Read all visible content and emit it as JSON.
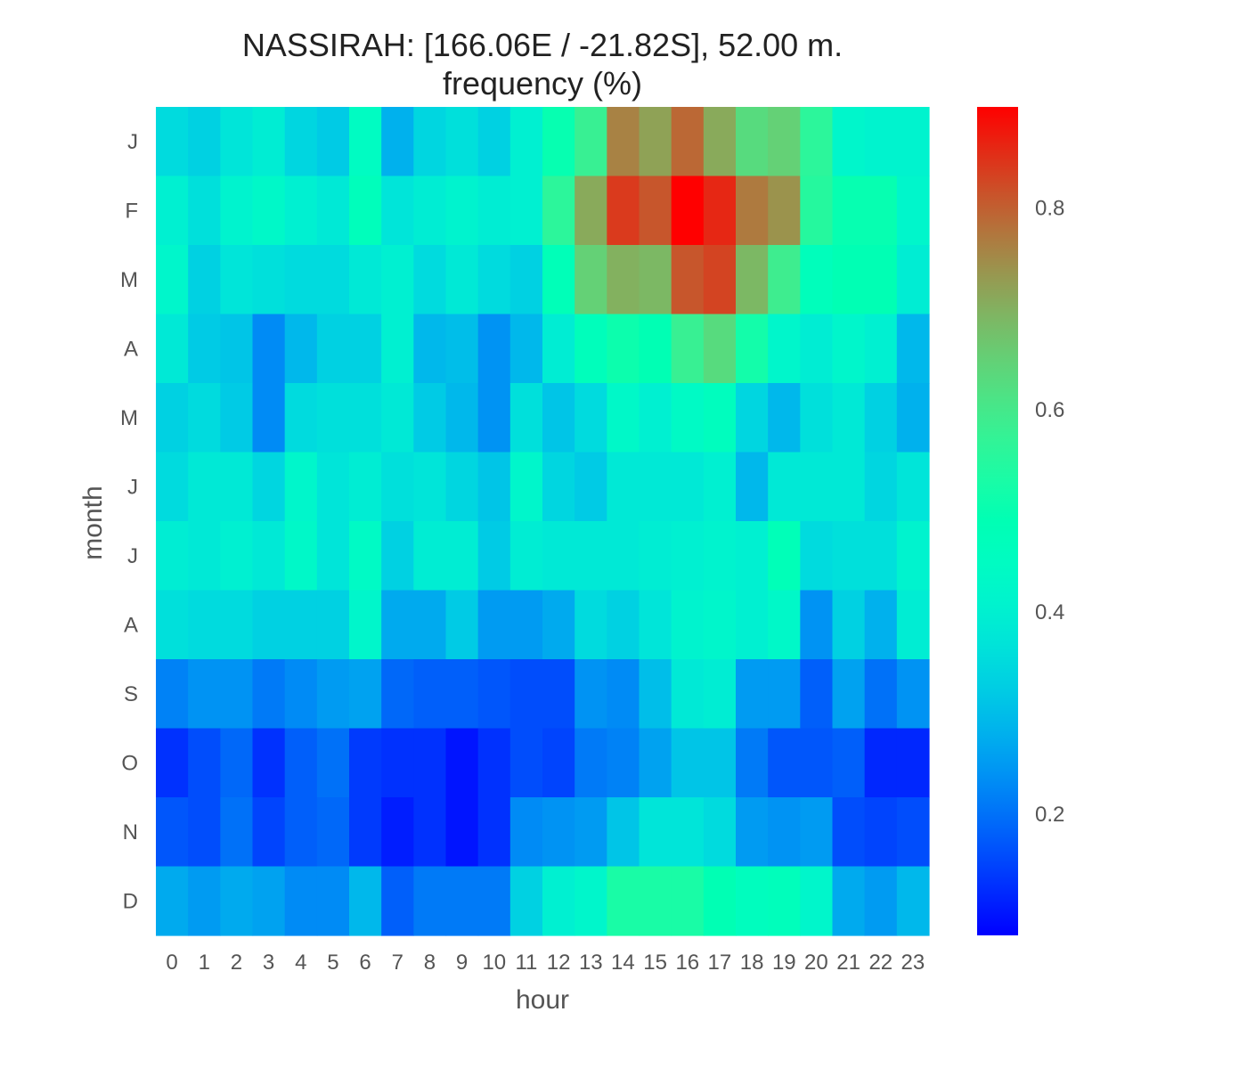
{
  "chart_data": {
    "type": "heatmap",
    "title": "NASSIRAH: [166.06E / -21.82S], 52.00 m.",
    "subtitle": "frequency (%)",
    "xlabel": "hour",
    "ylabel": "month",
    "x": [
      "0",
      "1",
      "2",
      "3",
      "4",
      "5",
      "6",
      "7",
      "8",
      "9",
      "10",
      "11",
      "12",
      "13",
      "14",
      "15",
      "16",
      "17",
      "18",
      "19",
      "20",
      "21",
      "22",
      "23"
    ],
    "y": [
      "J",
      "F",
      "M",
      "A",
      "M",
      "J",
      "J",
      "A",
      "S",
      "O",
      "N",
      "D"
    ],
    "values": [
      [
        0.35,
        0.33,
        0.37,
        0.39,
        0.34,
        0.32,
        0.45,
        0.28,
        0.34,
        0.36,
        0.33,
        0.4,
        0.5,
        0.58,
        0.76,
        0.72,
        0.79,
        0.71,
        0.63,
        0.65,
        0.56,
        0.42,
        0.41,
        0.41
      ],
      [
        0.4,
        0.36,
        0.41,
        0.43,
        0.4,
        0.38,
        0.47,
        0.37,
        0.39,
        0.41,
        0.39,
        0.4,
        0.56,
        0.71,
        0.84,
        0.81,
        0.9,
        0.86,
        0.77,
        0.74,
        0.55,
        0.5,
        0.5,
        0.42
      ],
      [
        0.42,
        0.33,
        0.37,
        0.36,
        0.35,
        0.35,
        0.38,
        0.4,
        0.35,
        0.38,
        0.35,
        0.33,
        0.48,
        0.65,
        0.7,
        0.69,
        0.81,
        0.83,
        0.69,
        0.59,
        0.47,
        0.49,
        0.49,
        0.39
      ],
      [
        0.38,
        0.32,
        0.31,
        0.23,
        0.29,
        0.33,
        0.33,
        0.4,
        0.29,
        0.3,
        0.24,
        0.29,
        0.39,
        0.47,
        0.51,
        0.49,
        0.58,
        0.63,
        0.52,
        0.42,
        0.39,
        0.42,
        0.4,
        0.29
      ],
      [
        0.33,
        0.35,
        0.32,
        0.23,
        0.35,
        0.36,
        0.36,
        0.38,
        0.32,
        0.29,
        0.24,
        0.36,
        0.31,
        0.35,
        0.43,
        0.4,
        0.44,
        0.46,
        0.34,
        0.29,
        0.36,
        0.38,
        0.33,
        0.28
      ],
      [
        0.35,
        0.38,
        0.38,
        0.34,
        0.42,
        0.37,
        0.39,
        0.36,
        0.37,
        0.34,
        0.31,
        0.42,
        0.34,
        0.32,
        0.38,
        0.38,
        0.38,
        0.4,
        0.29,
        0.38,
        0.38,
        0.38,
        0.34,
        0.37
      ],
      [
        0.39,
        0.38,
        0.4,
        0.38,
        0.43,
        0.37,
        0.44,
        0.33,
        0.39,
        0.39,
        0.32,
        0.39,
        0.38,
        0.38,
        0.38,
        0.39,
        0.4,
        0.41,
        0.4,
        0.48,
        0.35,
        0.36,
        0.36,
        0.41
      ],
      [
        0.36,
        0.35,
        0.35,
        0.33,
        0.33,
        0.33,
        0.42,
        0.27,
        0.27,
        0.32,
        0.25,
        0.25,
        0.27,
        0.35,
        0.33,
        0.37,
        0.41,
        0.42,
        0.4,
        0.43,
        0.24,
        0.33,
        0.28,
        0.39
      ],
      [
        0.22,
        0.24,
        0.24,
        0.21,
        0.23,
        0.25,
        0.26,
        0.19,
        0.18,
        0.18,
        0.17,
        0.16,
        0.16,
        0.24,
        0.23,
        0.3,
        0.38,
        0.39,
        0.25,
        0.25,
        0.18,
        0.26,
        0.2,
        0.24
      ],
      [
        0.13,
        0.16,
        0.19,
        0.13,
        0.18,
        0.2,
        0.14,
        0.13,
        0.13,
        0.1,
        0.13,
        0.16,
        0.15,
        0.21,
        0.22,
        0.26,
        0.31,
        0.31,
        0.21,
        0.17,
        0.17,
        0.18,
        0.12,
        0.12
      ],
      [
        0.17,
        0.16,
        0.2,
        0.15,
        0.18,
        0.19,
        0.14,
        0.11,
        0.13,
        0.1,
        0.13,
        0.23,
        0.24,
        0.25,
        0.31,
        0.37,
        0.37,
        0.35,
        0.25,
        0.24,
        0.25,
        0.16,
        0.15,
        0.16
      ],
      [
        0.27,
        0.25,
        0.27,
        0.26,
        0.23,
        0.23,
        0.29,
        0.18,
        0.21,
        0.21,
        0.21,
        0.33,
        0.4,
        0.42,
        0.53,
        0.53,
        0.53,
        0.49,
        0.46,
        0.47,
        0.42,
        0.27,
        0.25,
        0.29
      ]
    ],
    "colorbar": {
      "colormap": "rainbow",
      "min": 0.08,
      "max": 0.9,
      "ticks": [
        0.2,
        0.4,
        0.6,
        0.8
      ],
      "tick_labels": [
        "0.2",
        "0.4",
        "0.6",
        "0.8"
      ]
    }
  }
}
